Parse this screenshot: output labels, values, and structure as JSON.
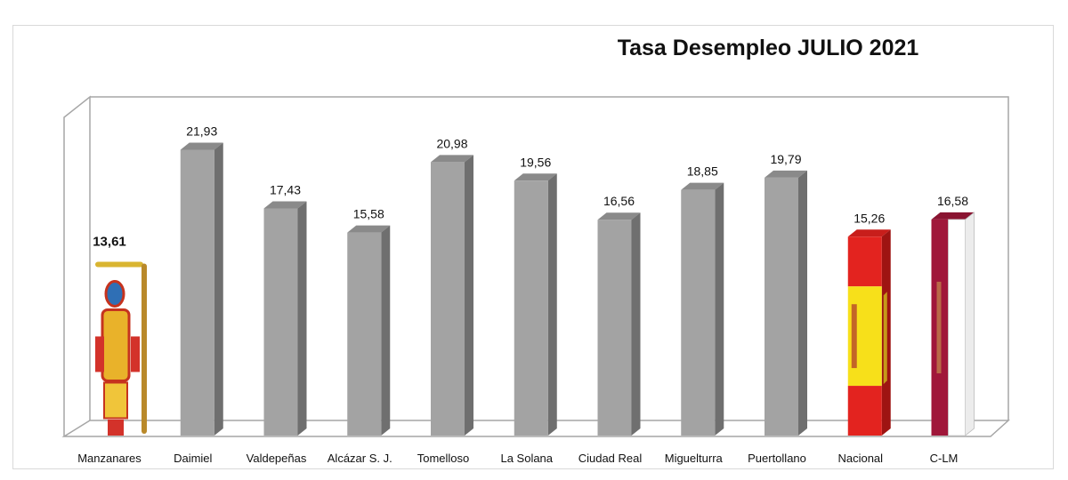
{
  "chart_data": {
    "type": "bar",
    "title": "Tasa Desempleo JULIO 2021",
    "xlabel": "",
    "ylabel": "",
    "categories": [
      "Manzanares",
      "Daimiel",
      "Valdepeñas",
      "Alcázar S. J.",
      "Tomelloso",
      "La Solana",
      "Ciudad Real",
      "Miguelturra",
      "Puertollano",
      "Nacional",
      "C-LM"
    ],
    "values": [
      13.61,
      21.93,
      17.43,
      15.58,
      20.98,
      19.56,
      16.56,
      18.85,
      19.79,
      15.26,
      16.58
    ],
    "value_labels": [
      "13,61",
      "21,93",
      "17,43",
      "15,58",
      "20,98",
      "19,56",
      "16,56",
      "18,85",
      "19,79",
      "15,26",
      "16,58"
    ],
    "ylim": [
      0,
      25
    ],
    "grid": false,
    "legend": "none",
    "highlight_index": 0,
    "styles": [
      "coat-of-arms",
      "gray",
      "gray",
      "gray",
      "gray",
      "gray",
      "gray",
      "gray",
      "gray",
      "flag-spain",
      "flag-clm"
    ],
    "colors": {
      "bar_front": "#a3a3a3",
      "bar_side": "#6f6f6f",
      "bar_top": "#8a8a8a",
      "wall": "#a6a6a6",
      "spain_red": "#e3231f",
      "spain_yellow": "#f7e01a",
      "clm_crimson": "#a0173a"
    }
  }
}
